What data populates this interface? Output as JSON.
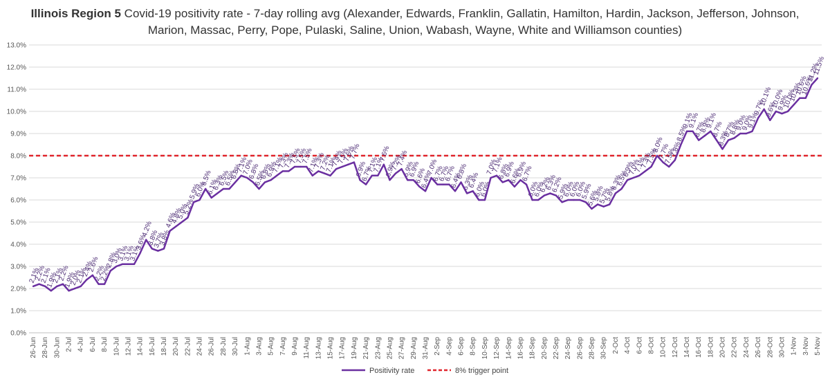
{
  "chart_data": {
    "type": "line",
    "title_bold": "Illinois Region 5",
    "title_rest": "Covid-19 positivity rate - 7-day rolling avg (Alexander, Edwards, Franklin, Gallatin, Hamilton, Hardin, Jackson, Jefferson, Johnson, Marion, Massac, Perry, Pope, Pulaski, Saline, Union, Wabash, Wayne, White and Williamson counties)",
    "y_ticks": [
      "0.0%",
      "1.0%",
      "2.0%",
      "3.0%",
      "4.0%",
      "5.0%",
      "6.0%",
      "7.0%",
      "8.0%",
      "9.0%",
      "10.0%",
      "11.0%",
      "12.0%",
      "13.0%"
    ],
    "ylim": [
      0,
      13
    ],
    "x_tick_labels": [
      "26-Jun",
      "28-Jun",
      "30-Jun",
      "2-Jul",
      "4-Jul",
      "6-Jul",
      "8-Jul",
      "10-Jul",
      "12-Jul",
      "14-Jul",
      "16-Jul",
      "18-Jul",
      "20-Jul",
      "22-Jul",
      "24-Jul",
      "26-Jul",
      "28-Jul",
      "30-Jul",
      "1-Aug",
      "3-Aug",
      "5-Aug",
      "7-Aug",
      "9-Aug",
      "11-Aug",
      "13-Aug",
      "15-Aug",
      "17-Aug",
      "19-Aug",
      "21-Aug",
      "23-Aug",
      "25-Aug",
      "27-Aug",
      "29-Aug",
      "31-Aug",
      "2-Sep",
      "4-Sep",
      "6-Sep",
      "8-Sep",
      "10-Sep",
      "12-Sep",
      "14-Sep",
      "16-Sep",
      "18-Sep",
      "20-Sep",
      "22-Sep",
      "24-Sep",
      "26-Sep",
      "28-Sep",
      "30-Sep",
      "2-Oct",
      "4-Oct",
      "6-Oct",
      "8-Oct",
      "10-Oct",
      "12-Oct",
      "14-Oct",
      "16-Oct",
      "18-Oct",
      "20-Oct",
      "22-Oct",
      "24-Oct",
      "26-Oct",
      "28-Oct",
      "30-Oct",
      "1-Nov",
      "3-Nov",
      "5-Nov"
    ],
    "series": [
      {
        "name": "Positivity rate",
        "color": "#6a2fa0",
        "values": [
          2.1,
          2.2,
          2.1,
          1.9,
          2.1,
          2.2,
          1.9,
          2.0,
          2.1,
          2.4,
          2.6,
          2.2,
          2.2,
          2.8,
          3.0,
          3.1,
          3.1,
          3.1,
          3.6,
          4.2,
          3.8,
          3.7,
          3.8,
          4.6,
          4.8,
          5.0,
          5.2,
          5.9,
          6.0,
          6.5,
          6.1,
          6.3,
          6.5,
          6.5,
          6.8,
          7.1,
          7.0,
          6.8,
          6.5,
          6.8,
          6.9,
          7.1,
          7.3,
          7.3,
          7.5,
          7.5,
          7.5,
          7.1,
          7.3,
          7.2,
          7.1,
          7.4,
          7.5,
          7.6,
          7.7,
          6.9,
          6.7,
          7.1,
          7.1,
          7.6,
          6.9,
          7.2,
          7.4,
          6.9,
          6.9,
          6.6,
          6.4,
          7.0,
          6.7,
          6.7,
          6.7,
          6.4,
          6.8,
          6.3,
          6.4,
          6.0,
          6.0,
          7.0,
          7.1,
          6.8,
          6.9,
          6.6,
          6.9,
          6.7,
          6.0,
          6.0,
          6.2,
          6.3,
          6.2,
          5.9,
          6.0,
          6.0,
          6.0,
          5.9,
          5.6,
          5.8,
          5.7,
          5.8,
          6.3,
          6.5,
          6.9,
          7.0,
          7.1,
          7.3,
          7.5,
          8.0,
          7.7,
          7.5,
          7.8,
          8.5,
          9.1,
          9.1,
          8.7,
          8.9,
          9.1,
          8.7,
          8.3,
          8.7,
          8.8,
          9.0,
          9.0,
          9.1,
          9.7,
          10.1,
          9.6,
          10.0,
          9.9,
          10.0,
          10.3,
          10.6,
          10.6,
          11.2,
          11.5
        ]
      },
      {
        "name": "8% trigger point",
        "color": "#e0242b",
        "value": 8.0
      }
    ],
    "grid": true,
    "legend_position": "bottom-center"
  }
}
